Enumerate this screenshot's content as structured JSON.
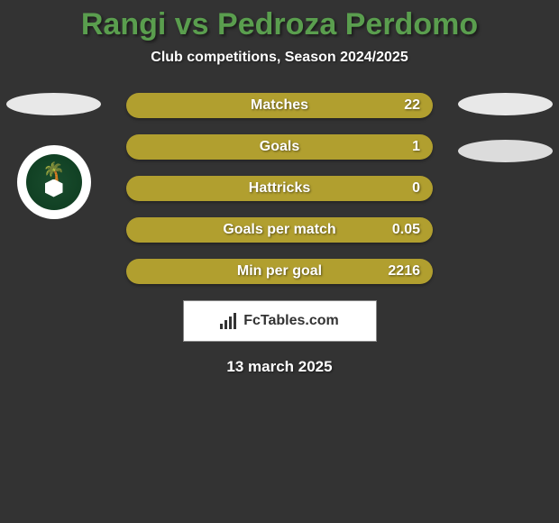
{
  "background_color": "#333333",
  "title": {
    "text": "Rangi vs Pedroza Perdomo",
    "color": "#5a9e4e",
    "fontsize": 34
  },
  "subtitle": {
    "text": "Club competitions, Season 2024/2025",
    "color": "#ffffff",
    "fontsize": 16
  },
  "left_player": {
    "oval_color": "#e8e8e8",
    "club_logo": {
      "bg": "#ffffff",
      "inner_bg": "#1a4d2e",
      "name": "al-ahli-saudi"
    }
  },
  "right_player": {
    "oval_color_1": "#e8e8e8",
    "oval_color_2": "#dcdcdc"
  },
  "stats": {
    "bar_color": "#b19f2f",
    "text_color": "#ffffff",
    "label_fontsize": 16,
    "value_fontsize": 16,
    "rows": [
      {
        "label": "Matches",
        "value": "22"
      },
      {
        "label": "Goals",
        "value": "1"
      },
      {
        "label": "Hattricks",
        "value": "0"
      },
      {
        "label": "Goals per match",
        "value": "0.05"
      },
      {
        "label": "Min per goal",
        "value": "2216"
      }
    ]
  },
  "branding": {
    "text": "FcTables.com",
    "bg": "#ffffff",
    "border_color": "#888888",
    "text_color": "#333333"
  },
  "date": {
    "text": "13 march 2025",
    "color": "#ffffff",
    "fontsize": 17
  }
}
